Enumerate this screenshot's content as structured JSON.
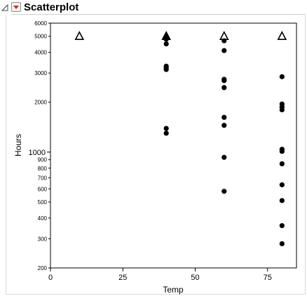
{
  "header": {
    "title": "Scatterplot",
    "disclosure_icon": "collapse-triangle-icon",
    "menu_icon": "red-dropdown-menu-icon",
    "menu_color": "#d9261c"
  },
  "chart_data": {
    "type": "scatter",
    "xlabel": "Temp",
    "ylabel": "Hours",
    "xlim": [
      0,
      85
    ],
    "ylim": [
      200,
      6000
    ],
    "y_scale": "log",
    "grid": false,
    "x_ticks": [
      0,
      25,
      50,
      75
    ],
    "y_ticks": [
      {
        "value": 200,
        "label": "200"
      },
      {
        "value": 300,
        "label": "300"
      },
      {
        "value": 400,
        "label": "400"
      },
      {
        "value": 500,
        "label": "500"
      },
      {
        "value": 600,
        "label": "600"
      },
      {
        "value": 700,
        "label": "700"
      },
      {
        "value": 800,
        "label": "800"
      },
      {
        "value": 900,
        "label": "900"
      },
      {
        "value": 1000,
        "label": "1000"
      },
      {
        "value": 2000,
        "label": "2000"
      },
      {
        "value": 3000,
        "label": "3000"
      },
      {
        "value": 4000,
        "label": "4000"
      },
      {
        "value": 5000,
        "label": "5000"
      },
      {
        "value": 6000,
        "label": "6000"
      }
    ],
    "series": [
      {
        "marker": "filled-circle",
        "color": "#000000",
        "points": [
          {
            "x": 40,
            "y": 1300
          },
          {
            "x": 40,
            "y": 1390
          },
          {
            "x": 40,
            "y": 3150
          },
          {
            "x": 40,
            "y": 3230
          },
          {
            "x": 40,
            "y": 3300
          },
          {
            "x": 40,
            "y": 4500
          },
          {
            "x": 40,
            "y": 4800
          },
          {
            "x": 60,
            "y": 580
          },
          {
            "x": 60,
            "y": 930
          },
          {
            "x": 60,
            "y": 1450
          },
          {
            "x": 60,
            "y": 1620
          },
          {
            "x": 60,
            "y": 2450
          },
          {
            "x": 60,
            "y": 2700
          },
          {
            "x": 60,
            "y": 2750
          },
          {
            "x": 60,
            "y": 4100
          },
          {
            "x": 60,
            "y": 4700
          },
          {
            "x": 80,
            "y": 280
          },
          {
            "x": 80,
            "y": 360
          },
          {
            "x": 80,
            "y": 510
          },
          {
            "x": 80,
            "y": 635
          },
          {
            "x": 80,
            "y": 850
          },
          {
            "x": 80,
            "y": 1010
          },
          {
            "x": 80,
            "y": 1040
          },
          {
            "x": 80,
            "y": 1800
          },
          {
            "x": 80,
            "y": 1870
          },
          {
            "x": 80,
            "y": 1950
          },
          {
            "x": 80,
            "y": 2850
          }
        ]
      },
      {
        "marker": "open-triangle",
        "color": "#000000",
        "points": [
          {
            "x": 10,
            "y": 5000
          },
          {
            "x": 40,
            "y": 5000
          },
          {
            "x": 60,
            "y": 5000
          },
          {
            "x": 80,
            "y": 5000
          }
        ]
      },
      {
        "marker": "filled-triangle",
        "color": "#000000",
        "points": [
          {
            "x": 40,
            "y": 5000
          }
        ]
      }
    ]
  }
}
